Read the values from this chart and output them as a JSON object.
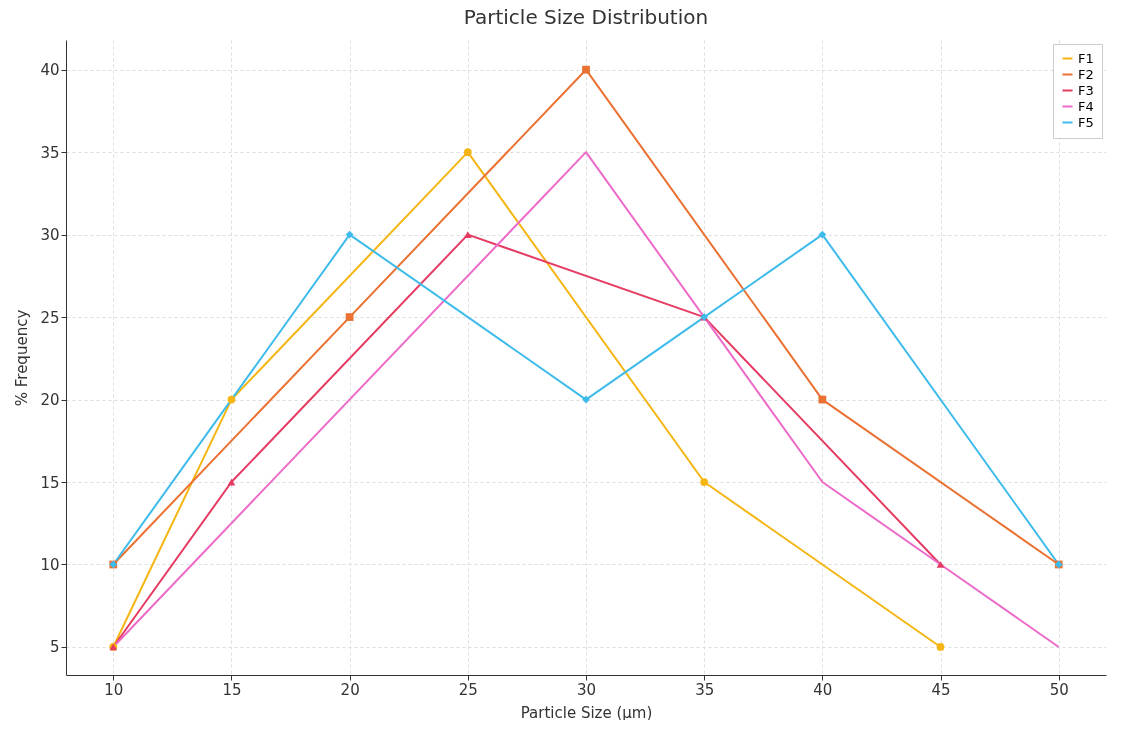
{
  "chart_data": {
    "type": "line",
    "title": "Particle Size Distribution",
    "xlabel": "Particle Size (µm)",
    "ylabel": "% Frequency",
    "xlim": [
      8,
      52
    ],
    "xticks": [
      10,
      15,
      20,
      25,
      30,
      35,
      40,
      45,
      50
    ],
    "ylim": [
      3.3,
      41.8
    ],
    "yticks": [
      5,
      10,
      15,
      20,
      25,
      30,
      35,
      40
    ],
    "grid": true,
    "legend": "top right",
    "series": [
      {
        "name": "F1",
        "color": "#f5b512",
        "marker": "circle",
        "x": [
          10,
          15,
          25,
          35,
          45
        ],
        "values": [
          5,
          20,
          35,
          15,
          5
        ]
      },
      {
        "name": "F2",
        "color": "#ea7131",
        "marker": "square",
        "x": [
          10,
          20,
          30,
          40,
          50
        ],
        "values": [
          10,
          25,
          40,
          20,
          10
        ]
      },
      {
        "name": "F3",
        "color": "#e53b63",
        "marker": "triangle",
        "x": [
          10,
          15,
          25,
          35,
          45
        ],
        "values": [
          5,
          15,
          30,
          25,
          10
        ]
      },
      {
        "name": "F4",
        "color": "#ec6ac8",
        "marker": "none",
        "x": [
          10,
          30,
          35,
          40,
          45,
          50
        ],
        "values": [
          5,
          35,
          25,
          15,
          10,
          5
        ]
      },
      {
        "name": "F5",
        "color": "#3dbbeb",
        "marker": "diamond",
        "x": [
          10,
          20,
          30,
          35,
          40,
          50
        ],
        "values": [
          10,
          30,
          20,
          25,
          30,
          10
        ]
      }
    ]
  }
}
